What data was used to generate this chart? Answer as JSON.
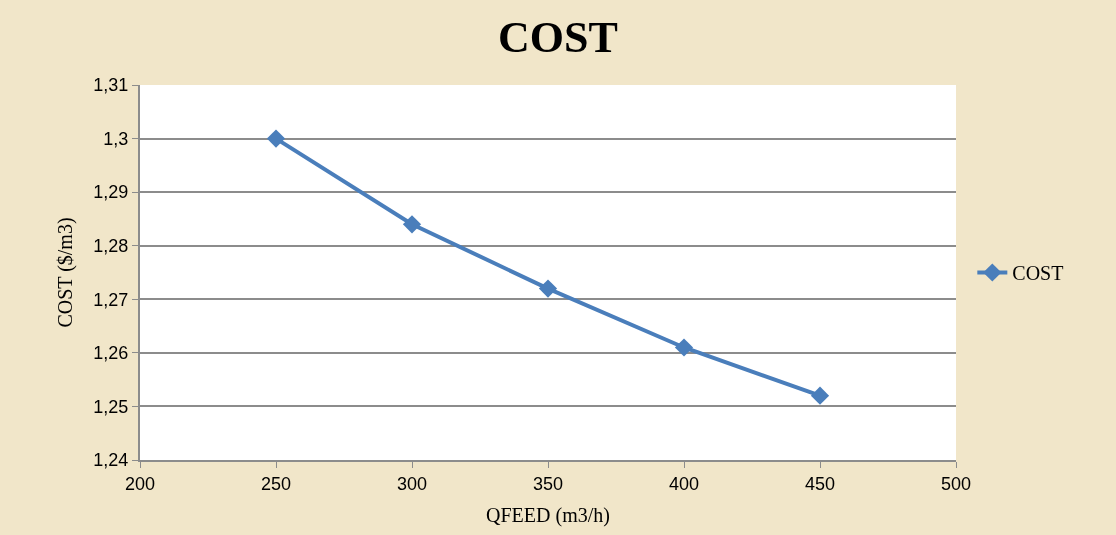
{
  "chart_data": {
    "type": "line",
    "title": "COST",
    "xlabel": "QFEED (m3/h)",
    "ylabel": "COST ($/m3)",
    "x": [
      250,
      300,
      350,
      400,
      450
    ],
    "series": [
      {
        "name": "COST",
        "color": "#4a7ebb",
        "values": [
          1.3,
          1.284,
          1.272,
          1.261,
          1.252
        ]
      }
    ],
    "xlim": [
      200,
      500
    ],
    "xticks": [
      200,
      250,
      300,
      350,
      400,
      450,
      500
    ],
    "ylim": [
      1.24,
      1.31
    ],
    "yticks": [
      {
        "value": 1.24,
        "label": "1,24"
      },
      {
        "value": 1.25,
        "label": "1,25"
      },
      {
        "value": 1.26,
        "label": "1,26"
      },
      {
        "value": 1.27,
        "label": "1,27"
      },
      {
        "value": 1.28,
        "label": "1,28"
      },
      {
        "value": 1.29,
        "label": "1,29"
      },
      {
        "value": 1.3,
        "label": "1,3"
      },
      {
        "value": 1.31,
        "label": "1,31"
      }
    ],
    "grid": "y",
    "legend": "right",
    "marker": "diamond",
    "line_style": "solid"
  }
}
